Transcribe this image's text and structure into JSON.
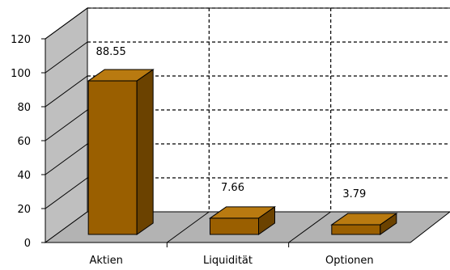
{
  "chart_data": {
    "type": "bar",
    "categories": [
      "Aktien",
      "Liquidität",
      "Optionen"
    ],
    "values": [
      88.55,
      7.66,
      3.79
    ],
    "data_labels": [
      "88.55",
      "7.66",
      "3.79"
    ],
    "ylim": [
      0,
      120
    ],
    "y_ticks": [
      "0",
      "20",
      "40",
      "60",
      "80",
      "100",
      "120"
    ],
    "grid": true,
    "three_d": true,
    "colors": {
      "bar_front": "#9a5f00",
      "bar_top": "#b97a10",
      "bar_side": "#6b4200",
      "floor": "#b3b3b3",
      "side_wall": "#bfbfbf",
      "grid_line": "#000000"
    }
  }
}
